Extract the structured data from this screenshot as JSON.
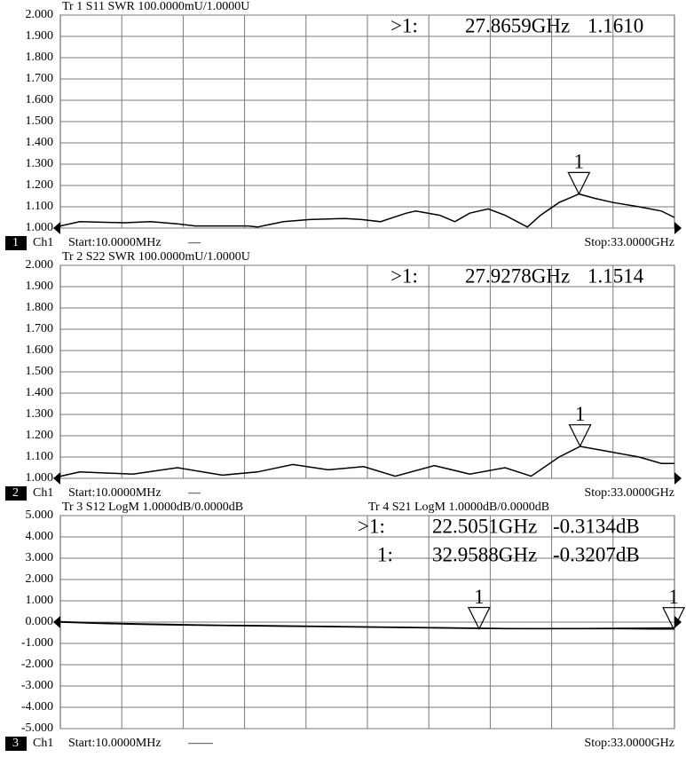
{
  "chart_data": [
    {
      "type": "line",
      "color": "#000000",
      "x": [
        0.01,
        1.06,
        3.45,
        4.87,
        6.3,
        7.25,
        10.1,
        10.6,
        12,
        13.4,
        15.3,
        16.2,
        17.2,
        18.6,
        19.1,
        20.4,
        21.2,
        22,
        23,
        23.9,
        25.1,
        25.8,
        26.8,
        27.87,
        28.7,
        29.7,
        31.1,
        32.3,
        33
      ],
      "xlim": [
        0.01,
        33
      ],
      "series": [
        {
          "name": "Tr 1  S11 SWR 100.0000mU/1.0000U",
          "color": "#000000",
          "values": [
            1.01,
            1.03,
            1.025,
            1.03,
            1.02,
            1.01,
            1.01,
            1.005,
            1.03,
            1.04,
            1.045,
            1.04,
            1.03,
            1.07,
            1.08,
            1.06,
            1.03,
            1.07,
            1.09,
            1.06,
            1.005,
            1.06,
            1.12,
            1.16,
            1.14,
            1.12,
            1.1,
            1.08,
            1.05
          ],
          "markers": [
            {
              "name": "1",
              "readout": ">1:",
              "x": 27.8659,
              "x_label": "27.8659GHz",
              "y": 1.161,
              "y_label": "1.1610"
            }
          ]
        }
      ],
      "ylim": [
        1,
        2
      ],
      "yticks": [
        {
          "value": 2,
          "label": "2.000"
        },
        {
          "value": 1.9,
          "label": "1.900"
        },
        {
          "value": 1.8,
          "label": "1.800"
        },
        {
          "value": 1.7,
          "label": "1.700"
        },
        {
          "value": 1.6,
          "label": "1.600"
        },
        {
          "value": 1.5,
          "label": "1.500"
        },
        {
          "value": 1.4,
          "label": "1.400"
        },
        {
          "value": 1.3,
          "label": "1.300"
        },
        {
          "value": 1.2,
          "label": "1.200"
        },
        {
          "value": 1.1,
          "label": "1.100"
        },
        {
          "value": 1,
          "label": "1.000"
        }
      ],
      "grid": true,
      "channel": "1",
      "channel_name": "Ch1",
      "start": "Start:10.0000MHz",
      "dash": "—",
      "stop": "Stop:33.0000GHz"
    },
    {
      "type": "line",
      "color": "#000000",
      "x": [
        0.01,
        1.06,
        3.91,
        6.3,
        8.7,
        10.6,
        12.5,
        14.4,
        16.3,
        18,
        20.1,
        22,
        23.9,
        25.3,
        26.8,
        27.93,
        29.2,
        31.1,
        32.3,
        33
      ],
      "xlim": [
        0.01,
        33
      ],
      "series": [
        {
          "name": "Tr 2  S22 SWR 100.0000mU/1.0000U",
          "color": "#000000",
          "values": [
            1.01,
            1.03,
            1.02,
            1.05,
            1.015,
            1.03,
            1.065,
            1.04,
            1.055,
            1.01,
            1.06,
            1.02,
            1.05,
            1.01,
            1.1,
            1.15,
            1.13,
            1.1,
            1.07,
            1.07
          ],
          "markers": [
            {
              "name": "1",
              "readout": ">1:",
              "x": 27.9278,
              "x_label": "27.9278GHz",
              "y": 1.1514,
              "y_label": "1.1514"
            }
          ]
        }
      ],
      "ylim": [
        1,
        2
      ],
      "yticks": [
        {
          "value": 2,
          "label": "2.000"
        },
        {
          "value": 1.9,
          "label": "1.900"
        },
        {
          "value": 1.8,
          "label": "1.800"
        },
        {
          "value": 1.7,
          "label": "1.700"
        },
        {
          "value": 1.6,
          "label": "1.600"
        },
        {
          "value": 1.5,
          "label": "1.500"
        },
        {
          "value": 1.4,
          "label": "1.400"
        },
        {
          "value": 1.3,
          "label": "1.300"
        },
        {
          "value": 1.2,
          "label": "1.200"
        },
        {
          "value": 1.1,
          "label": "1.100"
        },
        {
          "value": 1,
          "label": "1.000"
        }
      ],
      "grid": true,
      "channel": "2",
      "channel_name": "Ch1",
      "start": "Start:10.0000MHz",
      "dash": "—",
      "stop": "Stop:33.0000GHz"
    },
    {
      "type": "line",
      "color": "#000000",
      "x": [
        0.01,
        2,
        4,
        6,
        8,
        10,
        12,
        14,
        16,
        18,
        20,
        22,
        24,
        26,
        28,
        30,
        32,
        33
      ],
      "xlim": [
        0.01,
        33
      ],
      "series": [
        {
          "name": "Tr 3  S12 LogM 1.0000dB/0.0000dB",
          "color": "#000000",
          "values": [
            0,
            -0.06,
            -0.1,
            -0.13,
            -0.15,
            -0.17,
            -0.19,
            -0.21,
            -0.23,
            -0.25,
            -0.27,
            -0.29,
            -0.31,
            -0.31,
            -0.3,
            -0.29,
            -0.28,
            -0.27
          ],
          "markers": [
            {
              "name": "1",
              "readout": ">1:",
              "x": 22.5051,
              "x_label": "22.5051GHz",
              "y": -0.3134,
              "y_label": "-0.3134dB"
            }
          ]
        },
        {
          "name": "Tr 4  S21 LogM 1.0000dB/0.0000dB",
          "color": "#000000",
          "values": [
            0.02,
            -0.04,
            -0.08,
            -0.11,
            -0.14,
            -0.16,
            -0.18,
            -0.2,
            -0.22,
            -0.24,
            -0.26,
            -0.28,
            -0.3,
            -0.31,
            -0.31,
            -0.31,
            -0.32,
            -0.32
          ],
          "markers": [
            {
              "name": "1",
              "readout": "1:",
              "x": 32.9588,
              "x_label": "32.9588GHz",
              "y": -0.3207,
              "y_label": "-0.3207dB"
            }
          ]
        }
      ],
      "ylim": [
        -5,
        5
      ],
      "yticks": [
        {
          "value": 5,
          "label": "5.000"
        },
        {
          "value": 4,
          "label": "4.000"
        },
        {
          "value": 3,
          "label": "3.000"
        },
        {
          "value": 2,
          "label": "2.000"
        },
        {
          "value": 1,
          "label": "1.000"
        },
        {
          "value": 0,
          "label": "0.000"
        },
        {
          "value": -1,
          "label": "-1.000"
        },
        {
          "value": -2,
          "label": "-2.000"
        },
        {
          "value": -3,
          "label": "-3.000"
        },
        {
          "value": -4,
          "label": "-4.000"
        },
        {
          "value": -5,
          "label": "-5.000"
        }
      ],
      "grid": true,
      "channel": "3",
      "channel_name": "Ch1",
      "start": "Start:10.0000MHz",
      "dash": "——",
      "stop": "Stop:33.0000GHz"
    }
  ]
}
